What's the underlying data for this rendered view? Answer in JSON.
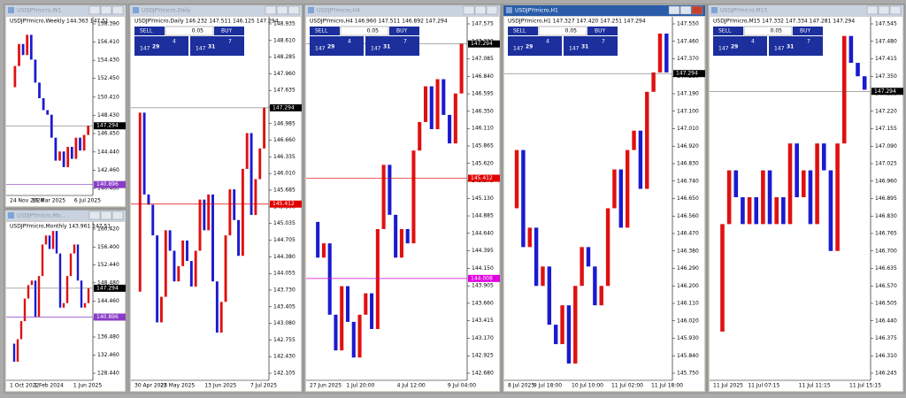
{
  "trade_panel": {
    "sell": "SELL",
    "lots": "0.05",
    "buy": "BUY",
    "bid_big": "147",
    "bid_main": "29",
    "bid_sup": "4",
    "ask_big": "147",
    "ask_main": "31",
    "ask_sup": "7"
  },
  "windows": [
    {
      "title": "USDJPYmicro,W1",
      "info": "USDJPYmicro,Weekly 144.363 147.51",
      "trade": false,
      "active": false,
      "ticks": [
        "158.390",
        "156.410",
        "154.430",
        "152.450",
        "150.410",
        "148.430",
        "146.450",
        "144.440",
        "142.460",
        "140.480"
      ],
      "dates": [
        "24 Nov 2024",
        "16 Mar 2025",
        "6 Jul 2025"
      ],
      "bid": "147.294",
      "levels": [
        {
          "label": "140.896",
          "color": "#8a3cc8"
        }
      ],
      "closes": [
        151.5,
        153.8,
        156.2,
        155.0,
        157.2,
        154.5,
        152.0,
        150.3,
        149.0,
        148.5,
        146.0,
        143.5,
        144.5,
        142.8,
        145.0,
        143.7,
        146.0,
        144.6,
        146.3,
        147.3
      ]
    },
    {
      "title": "USDJPYmicro,Mo...",
      "info": "USDJPYmicro,Monthly 143.961 147.51",
      "trade": false,
      "active": false,
      "ticks": [
        "160.420",
        "156.400",
        "152.440",
        "148.480",
        "144.460",
        "140.440",
        "136.480",
        "132.460",
        "128.440"
      ],
      "dates": [
        "1 Oct 2022",
        "1 Feb 2024",
        "1 Jun 2025"
      ],
      "bid": "147.294",
      "levels": [
        {
          "label": "140.896",
          "color": "#8a3cc8"
        }
      ],
      "closes": [
        135,
        131,
        136,
        140,
        145,
        148,
        149,
        141,
        150,
        157,
        159,
        156,
        160,
        155,
        143,
        144,
        150,
        155,
        157,
        149,
        143,
        144,
        147.3
      ]
    },
    {
      "title": "USDJPYmicro,Daily",
      "info": "USDJPYmicro,Daily 146.232 147.511 146.125 147.294",
      "trade": true,
      "active": false,
      "ticks": [
        "148.935",
        "148.610",
        "148.285",
        "147.960",
        "147.635",
        "147.310",
        "146.985",
        "146.660",
        "146.335",
        "146.010",
        "145.685",
        "145.360",
        "145.035",
        "144.705",
        "144.380",
        "144.055",
        "143.730",
        "143.405",
        "143.080",
        "142.755",
        "142.430",
        "142.105"
      ],
      "dates": [
        "30 Apr 2025",
        "22 May 2025",
        "13 Jun 2025",
        "7 Jul 2025"
      ],
      "bid": "147.294",
      "levels": [
        {
          "label": "145.412",
          "color": "#e00000"
        }
      ],
      "closes": [
        143.7,
        147.2,
        145.6,
        145.4,
        144.8,
        143.1,
        143.6,
        144.9,
        144.5,
        143.9,
        144.2,
        144.7,
        144.3,
        143.8,
        144.5,
        145.5,
        144.9,
        145.6,
        143.9,
        142.9,
        143.5,
        144.8,
        145.7,
        145.1,
        144.4,
        146.1,
        146.8,
        145.2,
        145.9,
        146.5,
        147.3
      ]
    },
    {
      "title": "USDJPYmicro,H4",
      "info": "USDJPYmicro,H4 146.960 147.511 146.892 147.294",
      "trade": true,
      "active": false,
      "ticks": [
        "147.575",
        "147.330",
        "147.085",
        "146.840",
        "146.595",
        "146.350",
        "146.110",
        "145.865",
        "145.620",
        "145.375",
        "145.130",
        "144.885",
        "144.640",
        "144.395",
        "144.150",
        "143.905",
        "143.660",
        "143.415",
        "143.170",
        "142.925",
        "142.680"
      ],
      "dates": [
        "27 Jun 2025",
        "1 Jul 20:00",
        "4 Jul 12:00",
        "9 Jul 04:00"
      ],
      "bid": "147.294",
      "levels": [
        {
          "label": "145.412",
          "color": "#e00000"
        },
        {
          "label": "144.008",
          "color": "#e000e0"
        }
      ],
      "closes": [
        144.8,
        144.3,
        144.5,
        143.5,
        143.0,
        143.9,
        143.4,
        142.9,
        143.5,
        143.8,
        143.3,
        144.7,
        145.6,
        144.9,
        144.3,
        144.7,
        144.5,
        145.8,
        146.2,
        146.7,
        146.1,
        146.8,
        146.3,
        145.9,
        146.6,
        147.3
      ]
    },
    {
      "title": "USDJPYmicro,H1",
      "info": "USDJPYmicro,H1 147.327 147.420 147.251 147.294",
      "trade": true,
      "active": true,
      "ticks": [
        "147.550",
        "147.460",
        "147.370",
        "147.280",
        "147.190",
        "147.100",
        "147.010",
        "146.920",
        "146.830",
        "146.740",
        "146.650",
        "146.560",
        "146.470",
        "146.380",
        "146.290",
        "146.200",
        "146.110",
        "146.020",
        "145.930",
        "145.840",
        "145.750"
      ],
      "dates": [
        "8 Jul 2025",
        "9 Jul 18:00",
        "10 Jul 10:00",
        "11 Jul 02:00",
        "11 Jul 18:00"
      ],
      "bid": "147.294",
      "levels": [],
      "closes": [
        146.6,
        146.9,
        146.4,
        146.5,
        146.2,
        146.3,
        146.0,
        145.9,
        146.1,
        145.8,
        146.2,
        146.4,
        146.3,
        146.1,
        146.2,
        146.6,
        146.8,
        146.5,
        146.9,
        147.0,
        146.7,
        147.2,
        147.3,
        147.5,
        147.3
      ]
    },
    {
      "title": "USDJPYmicro,M15",
      "info": "USDJPYmicro,M15 147.332 147.334 147.281 147.294",
      "trade": true,
      "active": false,
      "ticks": [
        "147.545",
        "147.480",
        "147.415",
        "147.350",
        "147.285",
        "147.220",
        "147.155",
        "147.090",
        "147.025",
        "146.960",
        "146.895",
        "146.830",
        "146.765",
        "146.700",
        "146.635",
        "146.570",
        "146.505",
        "146.440",
        "146.375",
        "146.310",
        "146.245"
      ],
      "dates": [
        "11 Jul 2025",
        "11 Jul 07:15",
        "11 Jul 11:15",
        "11 Jul 15:15"
      ],
      "bid": "147.294",
      "levels": [],
      "closes": [
        146.4,
        146.8,
        147.0,
        146.9,
        146.8,
        146.9,
        146.8,
        147.0,
        146.8,
        146.9,
        146.8,
        147.1,
        146.9,
        147.0,
        146.8,
        147.1,
        147.0,
        146.7,
        147.1,
        147.5,
        147.4,
        147.35,
        147.3
      ]
    }
  ]
}
